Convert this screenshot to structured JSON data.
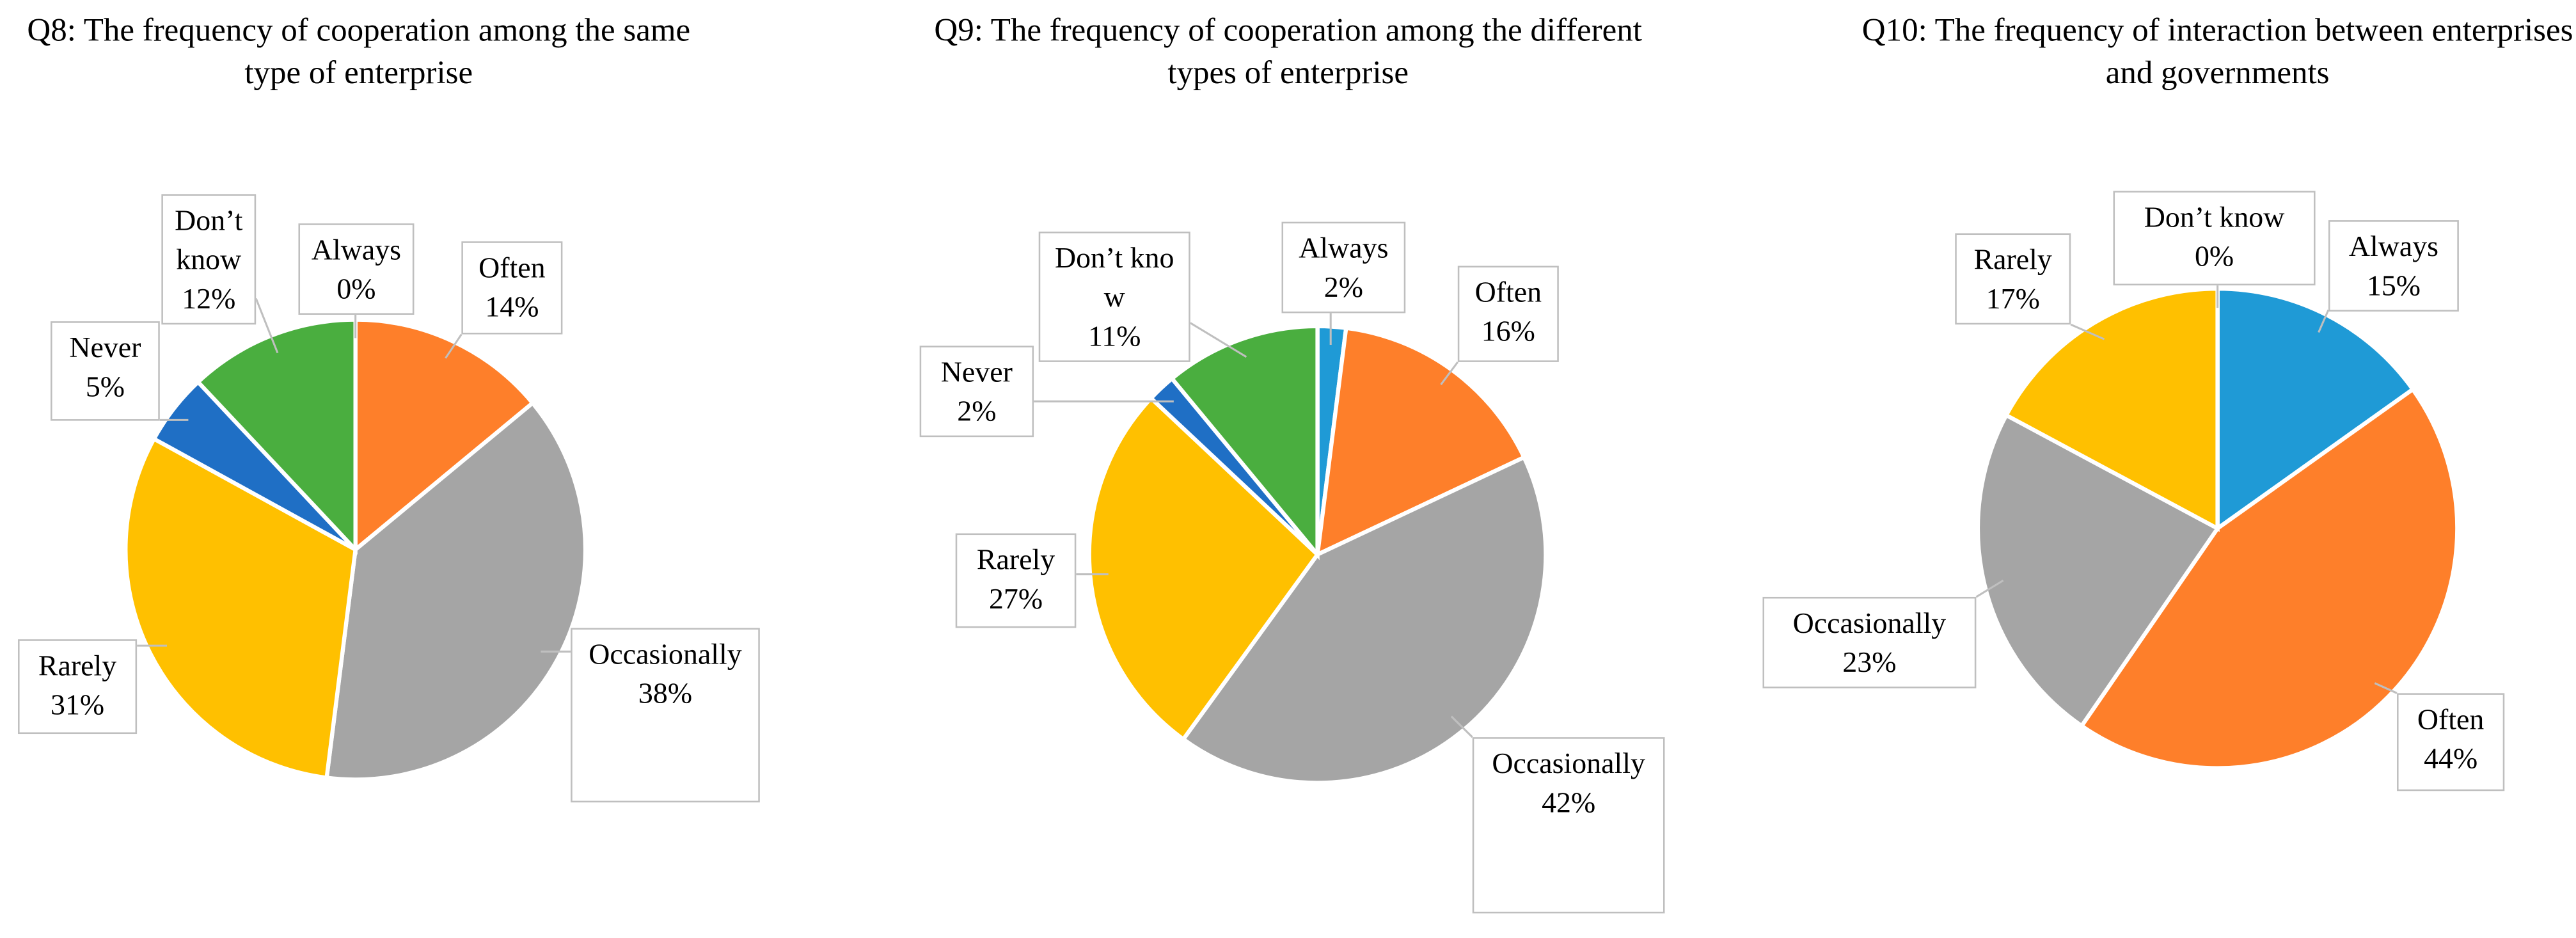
{
  "chart_data": [
    {
      "type": "pie",
      "title": "Q8: The frequency of cooperation among the same type of enterprise",
      "categories": [
        "Always",
        "Often",
        "Occasionally",
        "Rarely",
        "Never",
        "Don’t know"
      ],
      "values": [
        0,
        14,
        38,
        31,
        5,
        12
      ],
      "value_labels": [
        "0%",
        "14%",
        "38%",
        "31%",
        "5%",
        "12%"
      ],
      "colors": [
        "#1f9ad6",
        "#fe7f2a",
        "#a5a5a5",
        "#ffc000",
        "#1f6fc5",
        "#4aae3f"
      ]
    },
    {
      "type": "pie",
      "title": "Q9: The frequency of cooperation among the different types of enterprise",
      "categories": [
        "Always",
        "Often",
        "Occasionally",
        "Rarely",
        "Never",
        "Don’t know"
      ],
      "values": [
        2,
        16,
        42,
        27,
        2,
        11
      ],
      "value_labels": [
        "2%",
        "16%",
        "42%",
        "27%",
        "2%",
        "11%"
      ],
      "colors": [
        "#1f9ad6",
        "#fe7f2a",
        "#a5a5a5",
        "#ffc000",
        "#1f6fc5",
        "#4aae3f"
      ]
    },
    {
      "type": "pie",
      "title": "Q10: The frequency of interaction between enterprises and governments",
      "categories": [
        "Always",
        "Often",
        "Occasionally",
        "Rarely",
        "Don’t know"
      ],
      "values": [
        15,
        44,
        23,
        17,
        0
      ],
      "value_labels": [
        "15%",
        "44%",
        "23%",
        "17%",
        "0%"
      ],
      "colors": [
        "#1f9ad6",
        "#fe7f2a",
        "#a5a5a5",
        "#ffc000",
        "#1f5fbf"
      ]
    }
  ]
}
